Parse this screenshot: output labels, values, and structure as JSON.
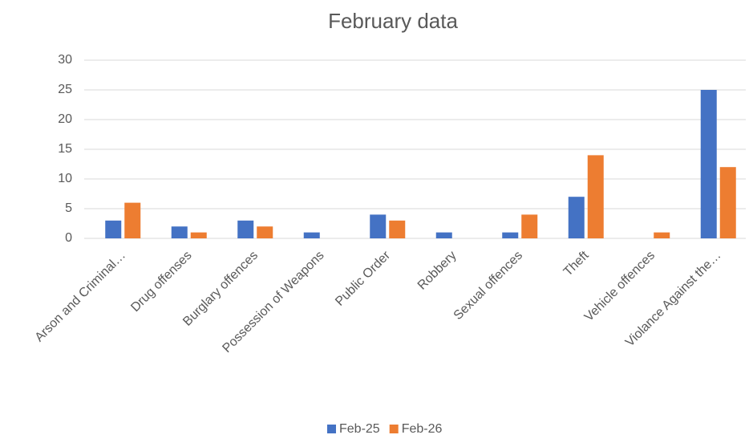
{
  "chart_data": {
    "type": "bar",
    "title": "February data",
    "categories": [
      "Arson and Criminal…",
      "Drug offenses",
      "Burglary offences",
      "Possession of Weapons",
      "Public Order",
      "Robbery",
      "Sexual offences",
      "Theft",
      "Vehicle offences",
      "Violance Against the…"
    ],
    "series": [
      {
        "name": "Feb-25",
        "color": "#4472c4",
        "values": [
          3,
          2,
          3,
          1,
          4,
          1,
          1,
          7,
          0,
          25
        ]
      },
      {
        "name": "Feb-26",
        "color": "#ed7d31",
        "values": [
          6,
          1,
          2,
          0,
          3,
          0,
          4,
          14,
          1,
          12
        ]
      }
    ],
    "ylim": [
      0,
      30
    ],
    "yticks": [
      0,
      5,
      10,
      15,
      20,
      25,
      30
    ],
    "grid": true,
    "legend": "bottom"
  }
}
